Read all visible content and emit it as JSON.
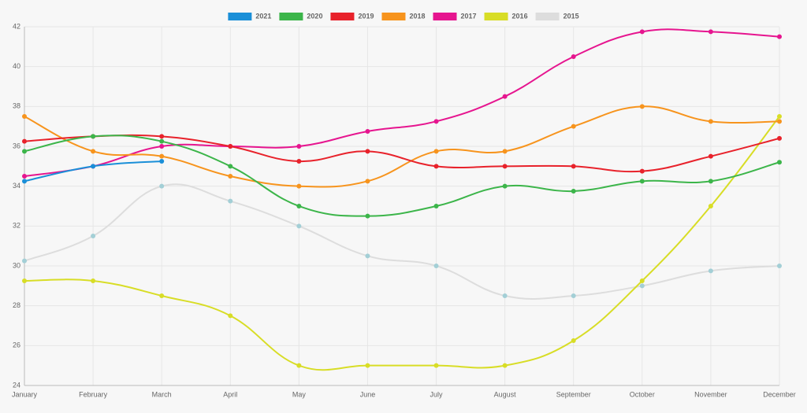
{
  "chart_data": {
    "type": "line",
    "categories": [
      "January",
      "February",
      "March",
      "April",
      "May",
      "June",
      "July",
      "August",
      "September",
      "October",
      "November",
      "December"
    ],
    "series": [
      {
        "name": "2021",
        "color": "#1a8fd8",
        "values": [
          34.25,
          35,
          35.25,
          null,
          null,
          null,
          null,
          null,
          null,
          null,
          null,
          null
        ]
      },
      {
        "name": "2020",
        "color": "#3cb54a",
        "values": [
          35.75,
          36.5,
          36.25,
          35,
          33,
          32.5,
          33,
          34,
          33.75,
          34.25,
          34.25,
          35.2
        ]
      },
      {
        "name": "2019",
        "color": "#e8222b",
        "values": [
          36.25,
          36.5,
          36.5,
          36,
          35.25,
          35.75,
          35,
          35,
          35,
          34.75,
          35.5,
          36.4
        ]
      },
      {
        "name": "2018",
        "color": "#f7941d",
        "values": [
          37.5,
          35.75,
          35.5,
          34.5,
          34,
          34.25,
          35.75,
          35.75,
          37,
          38,
          37.25,
          37.25
        ]
      },
      {
        "name": "2017",
        "color": "#e6158f",
        "values": [
          34.5,
          35,
          36,
          36,
          36,
          36.75,
          37.25,
          38.5,
          40.5,
          41.75,
          41.75,
          41.5
        ]
      },
      {
        "name": "2016",
        "color": "#d8dd26",
        "values": [
          29.25,
          29.25,
          28.5,
          27.5,
          25,
          25,
          25,
          25,
          26.25,
          29.25,
          33,
          37.5
        ]
      },
      {
        "name": "2015",
        "color": "#dddddd",
        "point_color": "#a3cfd6",
        "values": [
          30.25,
          31.5,
          34,
          33.25,
          32,
          30.5,
          30,
          28.5,
          28.5,
          29,
          29.75,
          30
        ]
      }
    ],
    "ylim": [
      24,
      42
    ],
    "yticks": [
      24,
      26,
      28,
      30,
      32,
      34,
      36,
      38,
      40,
      42
    ],
    "grid": true,
    "legend": "top"
  }
}
